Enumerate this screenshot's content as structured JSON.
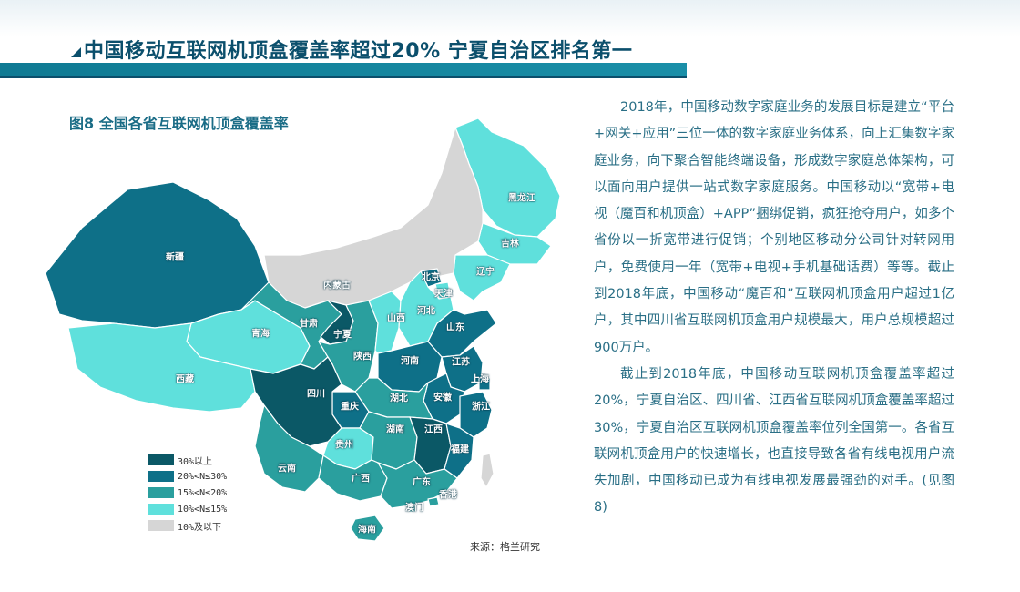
{
  "header": {
    "title": "中国移动互联网机顶盒覆盖率超过20%  宁夏自治区排名第一"
  },
  "figure": {
    "caption": "图8  全国各省互联网机顶盒覆盖率",
    "source": "来源：格兰研究"
  },
  "colors": {
    "tier1": "#0b5866",
    "tier2": "#0e7088",
    "tier3": "#2a9f9e",
    "tier4": "#5fe0dc",
    "tier5": "#d6d6d6",
    "header_bar": "#0f7a93",
    "text": "#2a6f86"
  },
  "legend": [
    {
      "label": "30%以上",
      "color": "#0b5866"
    },
    {
      "label": "20%<N≤30%",
      "color": "#0e7088"
    },
    {
      "label": "15%<N≤20%",
      "color": "#2a9f9e"
    },
    {
      "label": "10%<N≤15%",
      "color": "#5fe0dc"
    },
    {
      "label": "10%及以下",
      "color": "#d6d6d6"
    }
  ],
  "provinces": {
    "heilongjiang": "黑龙江",
    "jilin": "吉林",
    "liaoning": "辽宁",
    "neimenggu": "内蒙古",
    "beijing": "北京",
    "tianjin": "天津",
    "hebei": "河北",
    "shanxi": "山西",
    "shandong": "山东",
    "xinjiang": "新疆",
    "gansu": "甘肃",
    "ningxia": "宁夏",
    "qinghai": "青海",
    "shaanxi": "陕西",
    "henan": "河南",
    "jiangsu": "江苏",
    "shanghai": "上海",
    "xizang": "西藏",
    "sichuan": "四川",
    "chongqing": "重庆",
    "hubei": "湖北",
    "anhui": "安徽",
    "zhejiang": "浙江",
    "hunan": "湖南",
    "jiangxi": "江西",
    "guizhou": "贵州",
    "fujian": "福建",
    "yunnan": "云南",
    "guangxi": "广西",
    "guangdong": "广东",
    "xianggang": "香港",
    "aomen": "澳门",
    "hainan": "海南"
  },
  "paragraphs": [
    "2018年，中国移动数字家庭业务的发展目标是建立“平台+网关+应用”三位一体的数字家庭业务体系，向上汇集数字家庭业务，向下聚合智能终端设备，形成数字家庭总体架构，可以面向用户提供一站式数字家庭服务。中国移动以“宽带+电视（魔百和机顶盒）+APP”捆绑促销，疯狂抢夺用户，如多个省份以一折宽带进行促销；个别地区移动分公司针对转网用户，免费使用一年（宽带+电视+手机基础话费）等等。截止到2018年底，中国移动“魔百和”互联网机顶盒用户超过1亿户，其中四川省互联网机顶盒用户规模最大，用户总规模超过900万户。",
    "截止到2018年底，中国移动互联网机顶盒覆盖率超过20%，宁夏自治区、四川省、江西省互联网机顶盒覆盖率超过30%，宁夏自治区互联网机顶盒覆盖率位列全国第一。各省互联网机顶盒用户的快速增长，也直接导致各省有线电视用户流失加剧，中国移动已成为有线电视发展最强劲的对手。(见图8)"
  ]
}
